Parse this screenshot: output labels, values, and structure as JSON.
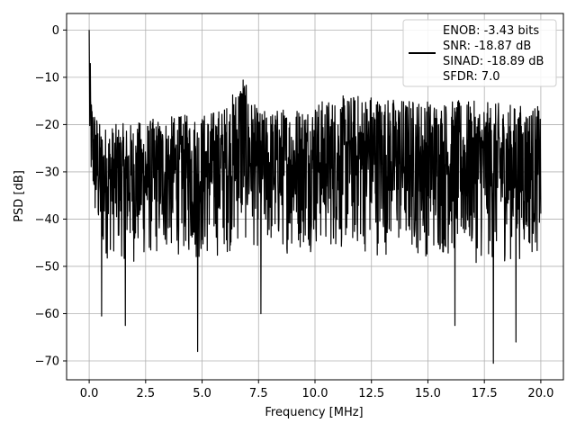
{
  "chart_data": {
    "type": "line",
    "title": "",
    "xlabel": "Frequency [MHz]",
    "ylabel": "PSD [dB]",
    "xlim": [
      -1.0,
      21.0
    ],
    "ylim": [
      -74,
      3.5
    ],
    "x_ticks": [
      0.0,
      2.5,
      5.0,
      7.5,
      10.0,
      12.5,
      15.0,
      17.5,
      20.0
    ],
    "x_tick_labels": [
      "0.0",
      "2.5",
      "5.0",
      "7.5",
      "10.0",
      "12.5",
      "15.0",
      "17.5",
      "20.0"
    ],
    "y_ticks": [
      0,
      -10,
      -20,
      -30,
      -40,
      -50,
      -60,
      -70
    ],
    "y_tick_labels": [
      "0",
      "−10",
      "−20",
      "−30",
      "−40",
      "−50",
      "−60",
      "−70"
    ],
    "grid": true,
    "legend_position": "top-right",
    "legend_lines": [
      "ENOB: -3.43 bits",
      "SNR: -18.87 dB",
      "SINAD: -18.89 dB",
      "SFDR: 7.0"
    ],
    "line_color": "#000000",
    "series": [
      {
        "x_range": [
          0.0,
          20.0
        ],
        "upper_envelope": [
          [
            0.0,
            0
          ],
          [
            0.1,
            -14
          ],
          [
            0.5,
            -20
          ],
          [
            1.0,
            -20
          ],
          [
            2.0,
            -19.5
          ],
          [
            3.0,
            -18.5
          ],
          [
            4.0,
            -18
          ],
          [
            5.0,
            -17.5
          ],
          [
            6.0,
            -16
          ],
          [
            6.5,
            -12
          ],
          [
            6.8,
            -7
          ],
          [
            7.0,
            -13
          ],
          [
            7.5,
            -17
          ],
          [
            9.0,
            -16
          ],
          [
            10.0,
            -15
          ],
          [
            11.0,
            -14
          ],
          [
            12.5,
            -13
          ],
          [
            13.0,
            -14
          ],
          [
            15.0,
            -14.5
          ],
          [
            17.0,
            -15
          ],
          [
            20.0,
            -16
          ]
        ],
        "lower_envelope": [
          [
            0.0,
            -32
          ],
          [
            0.3,
            -45
          ],
          [
            0.6,
            -50
          ],
          [
            1.0,
            -48
          ],
          [
            2.0,
            -50
          ],
          [
            3.0,
            -49
          ],
          [
            4.0,
            -48
          ],
          [
            5.0,
            -50
          ],
          [
            6.0,
            -48
          ],
          [
            7.0,
            -46
          ],
          [
            8.0,
            -48
          ],
          [
            10.0,
            -47
          ],
          [
            12.0,
            -48
          ],
          [
            14.0,
            -48
          ],
          [
            16.0,
            -49
          ],
          [
            18.0,
            -50
          ],
          [
            20.0,
            -48
          ]
        ],
        "notable_dips": [
          [
            0.55,
            -60.5
          ],
          [
            1.6,
            -62.5
          ],
          [
            4.8,
            -68
          ],
          [
            7.6,
            -60
          ],
          [
            16.2,
            -62.5
          ],
          [
            17.9,
            -70.5
          ],
          [
            18.9,
            -66
          ]
        ],
        "peak": [
          0.0,
          0
        ]
      }
    ]
  }
}
